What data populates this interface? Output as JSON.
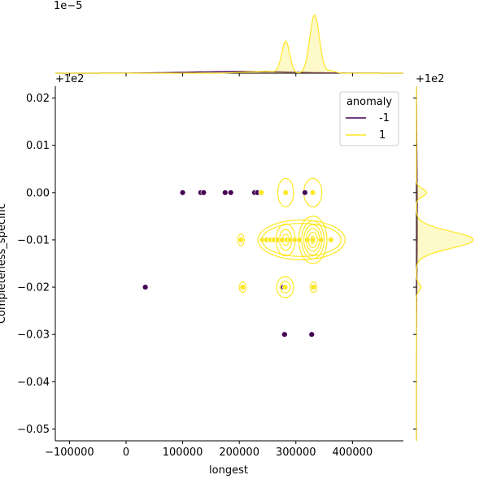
{
  "chart_data": {
    "type": "scatter",
    "subtype": "jointplot",
    "xlabel": "longest",
    "ylabel": "Completeness_specific",
    "x_ticks": [
      -100000,
      0,
      100000,
      200000,
      300000,
      400000
    ],
    "x_tick_labels": [
      "−100000",
      "0",
      "100000",
      "200000",
      "300000",
      "400000"
    ],
    "xlim": [
      -125000,
      490000
    ],
    "y_ticks": [
      -0.05,
      -0.04,
      -0.03,
      -0.02,
      -0.01,
      0.0,
      0.01,
      0.02
    ],
    "y_tick_labels": [
      "−0.05",
      "−0.04",
      "−0.03",
      "−0.02",
      "−0.01",
      "0.00",
      "0.01",
      "0.02"
    ],
    "ylim": [
      -0.0525,
      0.0225
    ],
    "y_offset_label": "+1e2",
    "right_offset_label": "+1e2",
    "top_scale_label": "1e−5",
    "legend": {
      "title": "anomaly",
      "placement": "upper right",
      "entries": [
        {
          "label": "-1",
          "color": "#440154"
        },
        {
          "label": "1",
          "color": "#fde725"
        }
      ]
    },
    "series": [
      {
        "name": "-1",
        "color": "#440154",
        "points": [
          [
            100000,
            0.0
          ],
          [
            132000,
            0.0
          ],
          [
            137000,
            0.0
          ],
          [
            175000,
            0.0
          ],
          [
            185000,
            0.0
          ],
          [
            227000,
            0.0
          ],
          [
            232000,
            0.0
          ],
          [
            316000,
            0.0
          ],
          [
            34000,
            -0.02
          ],
          [
            278000,
            -0.02
          ],
          [
            280000,
            -0.03
          ],
          [
            328000,
            -0.03
          ]
        ]
      },
      {
        "name": "1",
        "color": "#fde725",
        "points": [
          [
            239000,
            0.0
          ],
          [
            282000,
            0.0
          ],
          [
            330000,
            0.0
          ],
          [
            203000,
            -0.01
          ],
          [
            241000,
            -0.01
          ],
          [
            248000,
            -0.01
          ],
          [
            255000,
            -0.01
          ],
          [
            261000,
            -0.01
          ],
          [
            268000,
            -0.01
          ],
          [
            276000,
            -0.01
          ],
          [
            284000,
            -0.01
          ],
          [
            290000,
            -0.01
          ],
          [
            298000,
            -0.01
          ],
          [
            306000,
            -0.01
          ],
          [
            320000,
            -0.01
          ],
          [
            330000,
            -0.01
          ],
          [
            344000,
            -0.01
          ],
          [
            362000,
            -0.01
          ],
          [
            206000,
            -0.02
          ],
          [
            281000,
            -0.02
          ],
          [
            331000,
            -0.02
          ]
        ]
      }
    ],
    "kde_contours_series_1": [
      {
        "cx": 282000,
        "cy": 0.0,
        "rx": [
          14000
        ],
        "ry": [
          0.003
        ]
      },
      {
        "cx": 330000,
        "cy": 0.0,
        "rx": [
          16000
        ],
        "ry": [
          0.003
        ]
      },
      {
        "cx": 282000,
        "cy": -0.01,
        "rx": [
          6000,
          11000,
          17000
        ],
        "ry": [
          0.0012,
          0.0022,
          0.0034
        ]
      },
      {
        "cx": 330000,
        "cy": -0.01,
        "rx": [
          4000,
          8000,
          12000,
          16000,
          20000,
          25000
        ],
        "ry": [
          0.0008,
          0.0016,
          0.0024,
          0.0032,
          0.004,
          0.005
        ]
      },
      {
        "cx": 203000,
        "cy": -0.01,
        "rx": [
          6000
        ],
        "ry": [
          0.0012
        ]
      },
      {
        "cx": 310000,
        "cy": -0.01,
        "rx": [
          70000,
          77000
        ],
        "ry": [
          0.0035,
          0.0042
        ]
      },
      {
        "cx": 206000,
        "cy": -0.02,
        "rx": [
          6000
        ],
        "ry": [
          0.0011
        ]
      },
      {
        "cx": 281000,
        "cy": -0.02,
        "rx": [
          9000,
          15000
        ],
        "ry": [
          0.0012,
          0.0022
        ]
      },
      {
        "cx": 331000,
        "cy": -0.02,
        "rx": [
          6000
        ],
        "ry": [
          0.0011
        ]
      }
    ],
    "top_marginal_series_1": [
      {
        "center": 282000,
        "width": 7000,
        "height": 0.55
      },
      {
        "center": 333000,
        "width": 8500,
        "height": 1.0
      },
      {
        "center": 215000,
        "width": 20000,
        "height": 0.02
      },
      {
        "center": 250000,
        "width": 15000,
        "height": 0.03
      },
      {
        "center": 362000,
        "width": 8000,
        "height": 0.04
      }
    ],
    "top_marginal_series_neg1": [
      {
        "center": 200000,
        "width": 90000,
        "height": 0.03
      }
    ],
    "right_marginal_series_1": [
      {
        "center": -0.01,
        "width": 0.0018,
        "height": 1.0
      },
      {
        "center": 0.0,
        "width": 0.0008,
        "height": 0.18
      },
      {
        "center": -0.02,
        "width": 0.0008,
        "height": 0.08
      }
    ],
    "right_marginal_series_neg1": [
      {
        "center": -0.005,
        "width": 0.012,
        "height": 0.015
      }
    ]
  }
}
